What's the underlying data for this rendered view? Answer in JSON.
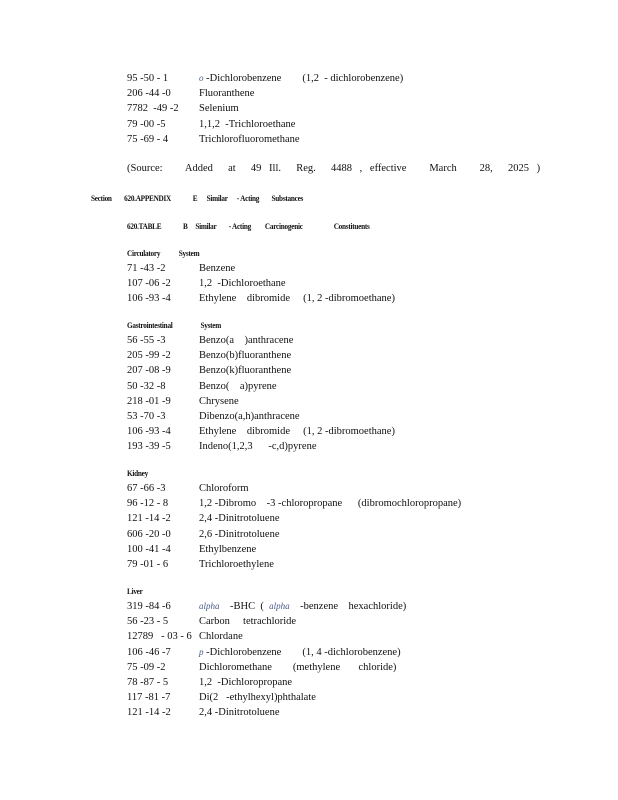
{
  "top_rows": [
    {
      "cas": "95 -50 - 1",
      "prefix": "o",
      "name": " -Dichlorobenzene        (1,2  - dichlorobenzene)"
    },
    {
      "cas": "206 -44 -0",
      "prefix": "",
      "name": "Fluoranthene"
    },
    {
      "cas": "7782  -49 -2",
      "prefix": "",
      "name": "Selenium"
    },
    {
      "cas": "79 -00 -5",
      "prefix": "",
      "name": "1,1,2  -Trichloroethane"
    },
    {
      "cas": "75 -69 - 4",
      "prefix": "",
      "name": "Trichlorofluoromethane"
    }
  ],
  "source": "(Source:   Added  at  49 Ill.  Reg.  4488 , effective   March   28,  2025 )",
  "section_heading": "Section        620.APPENDIX              E      Similar      - Acting        Substances",
  "table_heading": "620.TABLE              B     Similar        - Acting         Carcinogenic                    Constituents",
  "groups": [
    {
      "title": "Circulatory            System",
      "rows": [
        {
          "cas": "71 -43 -2",
          "prefix": "",
          "name": "Benzene"
        },
        {
          "cas": "107 -06 -2",
          "prefix": "",
          "name": "1,2  -Dichloroethane"
        },
        {
          "cas": "106 -93 -4",
          "prefix": "",
          "name": "Ethylene    dibromide     (1, 2 -dibromoethane)"
        }
      ]
    },
    {
      "title": "Gastrointestinal                  System",
      "rows": [
        {
          "cas": "56 -55 -3",
          "prefix": "",
          "name": "Benzo(a    )anthracene"
        },
        {
          "cas": "205 -99 -2",
          "prefix": "",
          "name": "Benzo(b)fluoranthene"
        },
        {
          "cas": "207 -08 -9",
          "prefix": "",
          "name": "Benzo(k)fluoranthene"
        },
        {
          "cas": "50 -32 -8",
          "prefix": "",
          "name": "Benzo(    a)pyrene"
        },
        {
          "cas": "218 -01 -9",
          "prefix": "",
          "name": "Chrysene"
        },
        {
          "cas": "53 -70 -3",
          "prefix": "",
          "name": "Dibenzo(a,h)anthracene"
        },
        {
          "cas": "106 -93 -4",
          "prefix": "",
          "name": "Ethylene    dibromide     (1, 2 -dibromoethane)"
        },
        {
          "cas": "193 -39 -5",
          "prefix": "",
          "name": "Indeno(1,2,3      -c,d)pyrene"
        }
      ]
    },
    {
      "title": "Kidney",
      "rows": [
        {
          "cas": "67 -66 -3",
          "prefix": "",
          "name": "Chloroform"
        },
        {
          "cas": "96 -12 - 8",
          "prefix": "",
          "name": "1,2 -Dibromo    -3 -chloropropane      (dibromochloropropane)"
        },
        {
          "cas": "121 -14 -2",
          "prefix": "",
          "name": "2,4 -Dinitrotoluene"
        },
        {
          "cas": "606 -20 -0",
          "prefix": "",
          "name": "2,6 -Dinitrotoluene"
        },
        {
          "cas": "100 -41 -4",
          "prefix": "",
          "name": "Ethylbenzene"
        },
        {
          "cas": "79 -01 - 6",
          "prefix": "",
          "name": "Trichloroethylene"
        }
      ]
    },
    {
      "title": "Liver",
      "rows": [
        {
          "cas": "319 -84 -6",
          "prefix": "alpha",
          "name": "    -BHC  (  ",
          "prefix2": "alpha",
          "name2": "    -benzene    hexachloride)"
        },
        {
          "cas": "56 -23 - 5",
          "prefix": "",
          "name": "Carbon     tetrachloride"
        },
        {
          "cas": "12789   - 03 - 6",
          "prefix": "",
          "name": "Chlordane"
        },
        {
          "cas": "106 -46 -7",
          "prefix": "p",
          "name": " -Dichlorobenzene        (1, 4 -dichlorobenzene)"
        },
        {
          "cas": "75 -09 -2",
          "prefix": "",
          "name": "Dichloromethane        (methylene       chloride)"
        },
        {
          "cas": "78 -87 - 5",
          "prefix": "",
          "name": "1,2  -Dichloropropane"
        },
        {
          "cas": "117 -81 -7",
          "prefix": "",
          "name": "Di(2   -ethylhexyl)phthalate"
        },
        {
          "cas": "121 -14 -2",
          "prefix": "",
          "name": "2,4 -Dinitrotoluene"
        }
      ]
    }
  ]
}
